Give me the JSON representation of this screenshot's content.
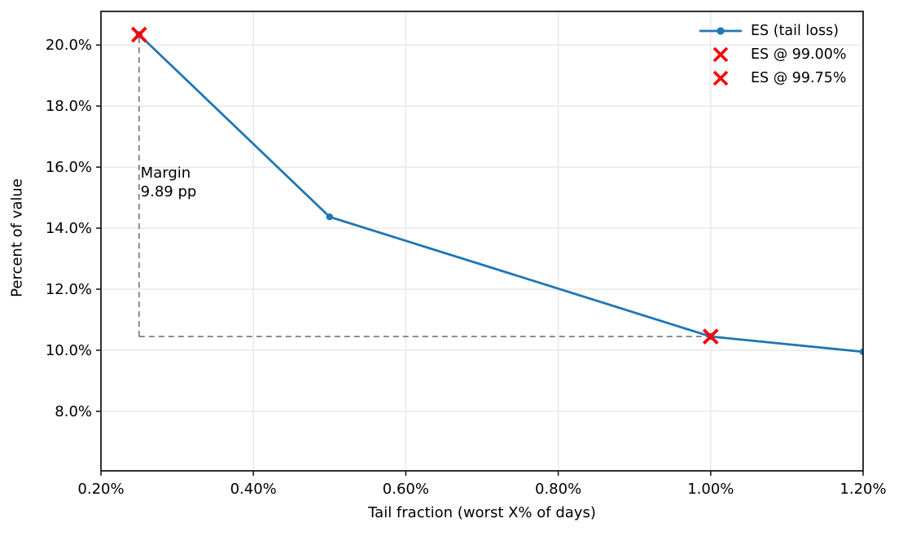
{
  "chart_data": {
    "type": "line",
    "title": "",
    "xlabel": "Tail fraction (worst X% of days)",
    "ylabel": "Percent of value",
    "xlim": [
      0.2,
      1.2
    ],
    "ylim": [
      6.05,
      21.1
    ],
    "x_ticks": [
      0.2,
      0.4,
      0.6,
      0.8,
      1.0,
      1.2
    ],
    "x_tick_labels": [
      "0.20%",
      "0.40%",
      "0.60%",
      "0.80%",
      "1.00%",
      "1.20%"
    ],
    "y_ticks": [
      8,
      10,
      12,
      14,
      16,
      18,
      20
    ],
    "y_tick_labels": [
      "8.0%",
      "10.0%",
      "12.0%",
      "14.0%",
      "16.0%",
      "18.0%",
      "20.0%"
    ],
    "grid": true,
    "grid_color": "#e7e7e7",
    "spine_color": "#1a1a1a",
    "legend": {
      "position": "upper right",
      "frame": false
    },
    "series": [
      {
        "name": "ES (tail loss)",
        "kind": "line",
        "color": "#1f77b4",
        "marker": "circle",
        "x": [
          0.25,
          0.5,
          1.0,
          1.2
        ],
        "y": [
          20.34,
          14.37,
          10.45,
          9.95
        ]
      },
      {
        "name": "ES @ 99.00%",
        "kind": "scatter",
        "color": "#ff0000",
        "marker": "x",
        "x": [
          1.0
        ],
        "y": [
          10.45
        ]
      },
      {
        "name": "ES @ 99.75%",
        "kind": "scatter",
        "color": "#ff0000",
        "marker": "x",
        "x": [
          0.25
        ],
        "y": [
          20.34
        ]
      }
    ],
    "guides": {
      "color": "#7f7f7f",
      "vertical": {
        "x": 0.25,
        "y1": 10.45,
        "y2": 20.34
      },
      "horizontal": {
        "y": 10.45,
        "x1": 0.25,
        "x2": 1.0
      }
    },
    "annotation": {
      "lines": [
        "Margin",
        "9.89 pp"
      ],
      "x": 0.252,
      "y_top_value": 16.12
    }
  }
}
